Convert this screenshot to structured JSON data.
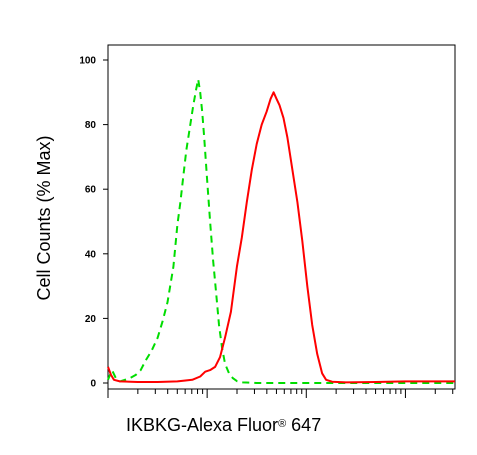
{
  "chart_data": {
    "type": "line",
    "xlabel_main": "IKBKG-Alexa Fluor",
    "xlabel_sup": "®",
    "xlabel_tail": " 647",
    "ylabel": "Cell Counts (% Max)",
    "x_scale": "log",
    "xlim_decades": [
      0,
      3.5
    ],
    "ylim": [
      0,
      105
    ],
    "y_ticks": [
      "0",
      "20",
      "40",
      "60",
      "80",
      "100"
    ],
    "grid": false,
    "series": [
      {
        "color": "#00dd00",
        "style": "dashed",
        "points": [
          [
            0.0,
            1
          ],
          [
            0.04,
            4
          ],
          [
            0.08,
            1.5
          ],
          [
            0.12,
            0.5
          ],
          [
            0.17,
            1
          ],
          [
            0.22,
            1.5
          ],
          [
            0.28,
            2.5
          ],
          [
            0.33,
            4
          ],
          [
            0.38,
            7
          ],
          [
            0.44,
            10
          ],
          [
            0.5,
            14
          ],
          [
            0.55,
            19
          ],
          [
            0.6,
            25
          ],
          [
            0.66,
            36
          ],
          [
            0.7,
            49
          ],
          [
            0.73,
            56
          ],
          [
            0.76,
            64
          ],
          [
            0.79,
            72
          ],
          [
            0.82,
            78
          ],
          [
            0.86,
            86
          ],
          [
            0.89,
            91
          ],
          [
            0.91,
            94
          ],
          [
            0.93,
            90
          ],
          [
            0.95,
            84
          ],
          [
            0.97,
            76
          ],
          [
            1.0,
            63
          ],
          [
            1.03,
            50
          ],
          [
            1.06,
            38
          ],
          [
            1.09,
            28
          ],
          [
            1.12,
            18
          ],
          [
            1.15,
            11
          ],
          [
            1.18,
            6
          ],
          [
            1.22,
            3
          ],
          [
            1.26,
            1.5
          ],
          [
            1.3,
            0.6
          ],
          [
            1.36,
            0.2
          ],
          [
            1.5,
            0
          ],
          [
            1.7,
            0
          ],
          [
            2.0,
            0
          ],
          [
            3.5,
            0
          ]
        ]
      },
      {
        "color": "#ff0000",
        "style": "solid",
        "points": [
          [
            0.0,
            5
          ],
          [
            0.03,
            2.5
          ],
          [
            0.06,
            1
          ],
          [
            0.12,
            0.5
          ],
          [
            0.3,
            0.3
          ],
          [
            0.5,
            0.3
          ],
          [
            0.7,
            0.5
          ],
          [
            0.85,
            1
          ],
          [
            0.93,
            2
          ],
          [
            0.98,
            3.5
          ],
          [
            1.03,
            4
          ],
          [
            1.08,
            5
          ],
          [
            1.13,
            8
          ],
          [
            1.18,
            14
          ],
          [
            1.24,
            22
          ],
          [
            1.3,
            36
          ],
          [
            1.35,
            45
          ],
          [
            1.4,
            56
          ],
          [
            1.45,
            66
          ],
          [
            1.5,
            74
          ],
          [
            1.55,
            80
          ],
          [
            1.6,
            84
          ],
          [
            1.64,
            88
          ],
          [
            1.67,
            90
          ],
          [
            1.7,
            88
          ],
          [
            1.73,
            86
          ],
          [
            1.77,
            82
          ],
          [
            1.81,
            76
          ],
          [
            1.86,
            66
          ],
          [
            1.91,
            56
          ],
          [
            1.96,
            44
          ],
          [
            2.01,
            30
          ],
          [
            2.06,
            18
          ],
          [
            2.11,
            9
          ],
          [
            2.16,
            3
          ],
          [
            2.2,
            1
          ],
          [
            2.26,
            0.4
          ],
          [
            2.4,
            0.2
          ],
          [
            2.7,
            0.3
          ],
          [
            3.0,
            0.5
          ],
          [
            3.5,
            0.5
          ]
        ]
      }
    ]
  }
}
